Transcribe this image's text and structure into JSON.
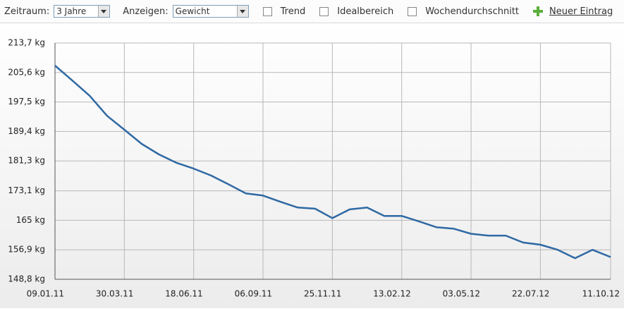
{
  "toolbar": {
    "period_label": "Zeitraum:",
    "period_value": "3 Jahre",
    "show_label": "Anzeigen:",
    "show_value": "Gewicht",
    "checkboxes": [
      "Trend",
      "Idealbereich",
      "Wochendurchschnitt"
    ],
    "new_entry": "Neuer Eintrag"
  },
  "chart_data": {
    "type": "line",
    "color": "#2f69a3",
    "grid": true,
    "x": [
      "2011-01-09",
      "2011-01-29",
      "2011-02-18",
      "2011-03-10",
      "2011-03-30",
      "2011-04-19",
      "2011-05-09",
      "2011-05-29",
      "2011-06-18",
      "2011-07-08",
      "2011-07-28",
      "2011-08-17",
      "2011-09-06",
      "2011-09-26",
      "2011-10-16",
      "2011-11-05",
      "2011-11-25",
      "2011-12-15",
      "2012-01-04",
      "2012-01-24",
      "2012-02-13",
      "2012-03-04",
      "2012-03-24",
      "2012-04-13",
      "2012-05-03",
      "2012-05-23",
      "2012-06-12",
      "2012-07-02",
      "2012-07-22",
      "2012-08-11",
      "2012-08-31",
      "2012-09-20",
      "2012-10-11"
    ],
    "values": [
      207.5,
      203.4,
      199.2,
      193.7,
      189.9,
      186.0,
      183.1,
      180.8,
      179.2,
      177.3,
      174.9,
      172.4,
      171.8,
      170.1,
      168.5,
      168.2,
      165.6,
      168.0,
      168.5,
      166.2,
      166.2,
      164.7,
      163.1,
      162.7,
      161.3,
      160.8,
      160.8,
      158.9,
      158.3,
      156.9,
      154.6,
      156.9,
      154.9
    ],
    "xlim": [
      "2011-01-09",
      "2012-10-11"
    ],
    "xticks": [
      {
        "value": "2011-01-09",
        "label": "09.01.11"
      },
      {
        "value": "2011-03-30",
        "label": "30.03.11"
      },
      {
        "value": "2011-06-18",
        "label": "18.06.11"
      },
      {
        "value": "2011-09-06",
        "label": "06.09.11"
      },
      {
        "value": "2011-11-25",
        "label": "25.11.11"
      },
      {
        "value": "2012-02-13",
        "label": "13.02.12"
      },
      {
        "value": "2012-05-03",
        "label": "03.05.12"
      },
      {
        "value": "2012-07-22",
        "label": "22.07.12"
      },
      {
        "value": "2012-10-11",
        "label": "11.10.12"
      }
    ],
    "ylim": [
      148.8,
      213.7
    ],
    "yticks": [
      {
        "value": 148.8,
        "label": "148,8 kg"
      },
      {
        "value": 156.9,
        "label": "156,9 kg"
      },
      {
        "value": 165,
        "label": "165 kg"
      },
      {
        "value": 173.1,
        "label": "173,1 kg"
      },
      {
        "value": 181.3,
        "label": "181,3 kg"
      },
      {
        "value": 189.4,
        "label": "189,4 kg"
      },
      {
        "value": 197.5,
        "label": "197,5 kg"
      },
      {
        "value": 205.6,
        "label": "205,6 kg"
      },
      {
        "value": 213.7,
        "label": "213,7 kg"
      }
    ]
  }
}
